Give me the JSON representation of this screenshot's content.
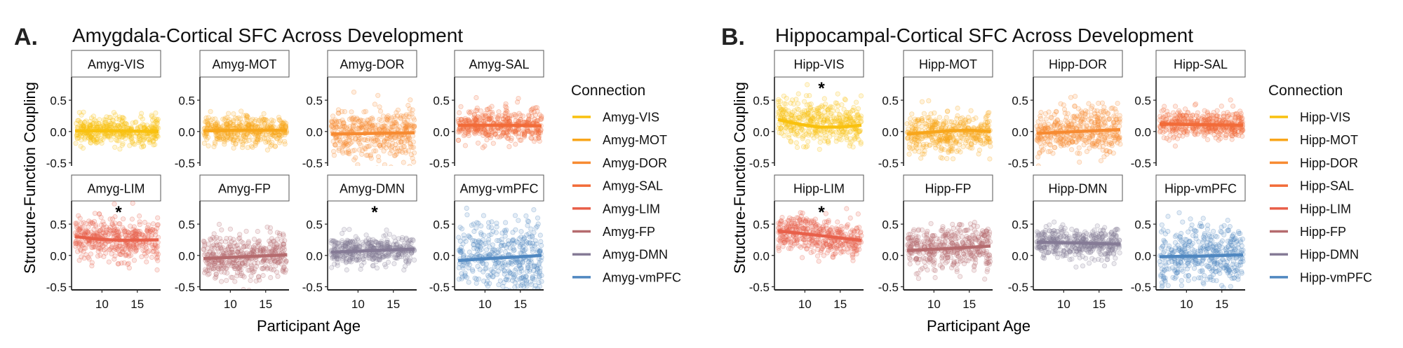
{
  "chart_data": [
    {
      "type": "scatter",
      "panel_letter": "A.",
      "title": "Amygdala-Cortical SFC Across Development",
      "xlabel": "Participant Age",
      "ylabel": "Structure-Function Coupling",
      "xlim": [
        5.7,
        18.3
      ],
      "ylim": [
        -0.55,
        0.87
      ],
      "xticks": [
        10,
        15
      ],
      "yticks": [
        -0.5,
        0.0,
        0.5
      ],
      "ytick_labels": [
        "-0.5",
        "0.0",
        "0.5"
      ],
      "xtick_labels": [
        "10",
        "15"
      ],
      "grid": false,
      "legend": {
        "title": "Connection",
        "position": "right"
      },
      "facets": [
        {
          "name": "Amyg-VIS",
          "color": "#F9C10E",
          "significant": false,
          "fit": [
            [
              6.2,
              0.01
            ],
            [
              12,
              0.01
            ],
            [
              18,
              0.0
            ]
          ],
          "point_mean": 0.0,
          "point_sd": 0.11
        },
        {
          "name": "Amyg-MOT",
          "color": "#F8A61B",
          "significant": false,
          "fit": [
            [
              6.2,
              0.01
            ],
            [
              12,
              0.02
            ],
            [
              18,
              0.02
            ]
          ],
          "point_mean": 0.02,
          "point_sd": 0.12
        },
        {
          "name": "Amyg-DOR",
          "color": "#F78B32",
          "significant": false,
          "fit": [
            [
              6.2,
              -0.04
            ],
            [
              12,
              -0.03
            ],
            [
              18,
              -0.02
            ]
          ],
          "point_mean": -0.03,
          "point_sd": 0.2
        },
        {
          "name": "Amyg-SAL",
          "color": "#F26B38",
          "significant": false,
          "fit": [
            [
              6.2,
              0.1
            ],
            [
              12,
              0.1
            ],
            [
              18,
              0.09
            ]
          ],
          "point_mean": 0.1,
          "point_sd": 0.12
        },
        {
          "name": "Amyg-LIM",
          "color": "#E8604A",
          "significant": true,
          "fit": [
            [
              6.2,
              0.3
            ],
            [
              9.5,
              0.26
            ],
            [
              12.5,
              0.24
            ],
            [
              18,
              0.25
            ]
          ],
          "point_mean": 0.27,
          "point_sd": 0.17
        },
        {
          "name": "Amyg-FP",
          "color": "#B56B6E",
          "significant": false,
          "fit": [
            [
              6.2,
              -0.05
            ],
            [
              12,
              -0.02
            ],
            [
              18,
              0.01
            ]
          ],
          "point_mean": -0.02,
          "point_sd": 0.17
        },
        {
          "name": "Amyg-DMN",
          "color": "#857B96",
          "significant": true,
          "fit": [
            [
              6.2,
              0.05
            ],
            [
              12,
              0.08
            ],
            [
              18,
              0.1
            ]
          ],
          "point_mean": 0.07,
          "point_sd": 0.11
        },
        {
          "name": "Amyg-vmPFC",
          "color": "#4F87C0",
          "significant": false,
          "fit": [
            [
              6.2,
              -0.08
            ],
            [
              12,
              -0.04
            ],
            [
              18,
              0.0
            ]
          ],
          "point_mean": -0.04,
          "point_sd": 0.32
        }
      ]
    },
    {
      "type": "scatter",
      "panel_letter": "B.",
      "title": "Hippocampal-Cortical SFC Across Development",
      "xlabel": "Participant Age",
      "ylabel": "Structure-Function Coupling",
      "xlim": [
        5.7,
        18.3
      ],
      "ylim": [
        -0.55,
        0.87
      ],
      "xticks": [
        10,
        15
      ],
      "yticks": [
        -0.5,
        0.0,
        0.5
      ],
      "ytick_labels": [
        "-0.5",
        "0.0",
        "0.5"
      ],
      "xtick_labels": [
        "10",
        "15"
      ],
      "grid": false,
      "legend": {
        "title": "Connection",
        "position": "right"
      },
      "facets": [
        {
          "name": "Hipp-VIS",
          "color": "#F9C10E",
          "significant": true,
          "fit": [
            [
              6.2,
              0.19
            ],
            [
              9,
              0.12
            ],
            [
              12,
              0.07
            ],
            [
              15,
              0.07
            ],
            [
              18,
              0.1
            ]
          ],
          "point_mean": 0.1,
          "point_sd": 0.16
        },
        {
          "name": "Hipp-MOT",
          "color": "#F8A61B",
          "significant": false,
          "fit": [
            [
              6.2,
              -0.04
            ],
            [
              12,
              0.01
            ],
            [
              15,
              0.02
            ],
            [
              18,
              0.0
            ]
          ],
          "point_mean": 0.0,
          "point_sd": 0.15
        },
        {
          "name": "Hipp-DOR",
          "color": "#F78B32",
          "significant": false,
          "fit": [
            [
              6.2,
              -0.03
            ],
            [
              12,
              0.0
            ],
            [
              18,
              0.03
            ]
          ],
          "point_mean": 0.0,
          "point_sd": 0.2
        },
        {
          "name": "Hipp-SAL",
          "color": "#F26B38",
          "significant": false,
          "fit": [
            [
              6.2,
              0.12
            ],
            [
              12,
              0.11
            ],
            [
              18,
              0.1
            ]
          ],
          "point_mean": 0.11,
          "point_sd": 0.11
        },
        {
          "name": "Hipp-LIM",
          "color": "#E8604A",
          "significant": true,
          "fit": [
            [
              6.2,
              0.39
            ],
            [
              12,
              0.32
            ],
            [
              18,
              0.24
            ]
          ],
          "point_mean": 0.32,
          "point_sd": 0.15
        },
        {
          "name": "Hipp-FP",
          "color": "#B56B6E",
          "significant": false,
          "fit": [
            [
              6.2,
              0.08
            ],
            [
              12,
              0.11
            ],
            [
              18,
              0.15
            ]
          ],
          "point_mean": 0.11,
          "point_sd": 0.17
        },
        {
          "name": "Hipp-DMN",
          "color": "#857B96",
          "significant": false,
          "fit": [
            [
              6.2,
              0.21
            ],
            [
              12,
              0.2
            ],
            [
              18,
              0.18
            ]
          ],
          "point_mean": 0.2,
          "point_sd": 0.12
        },
        {
          "name": "Hipp-vmPFC",
          "color": "#4F87C0",
          "significant": false,
          "fit": [
            [
              6.2,
              -0.02
            ],
            [
              12,
              -0.01
            ],
            [
              18,
              0.01
            ]
          ],
          "point_mean": -0.01,
          "point_sd": 0.24
        }
      ]
    }
  ],
  "significance_marker": "*"
}
